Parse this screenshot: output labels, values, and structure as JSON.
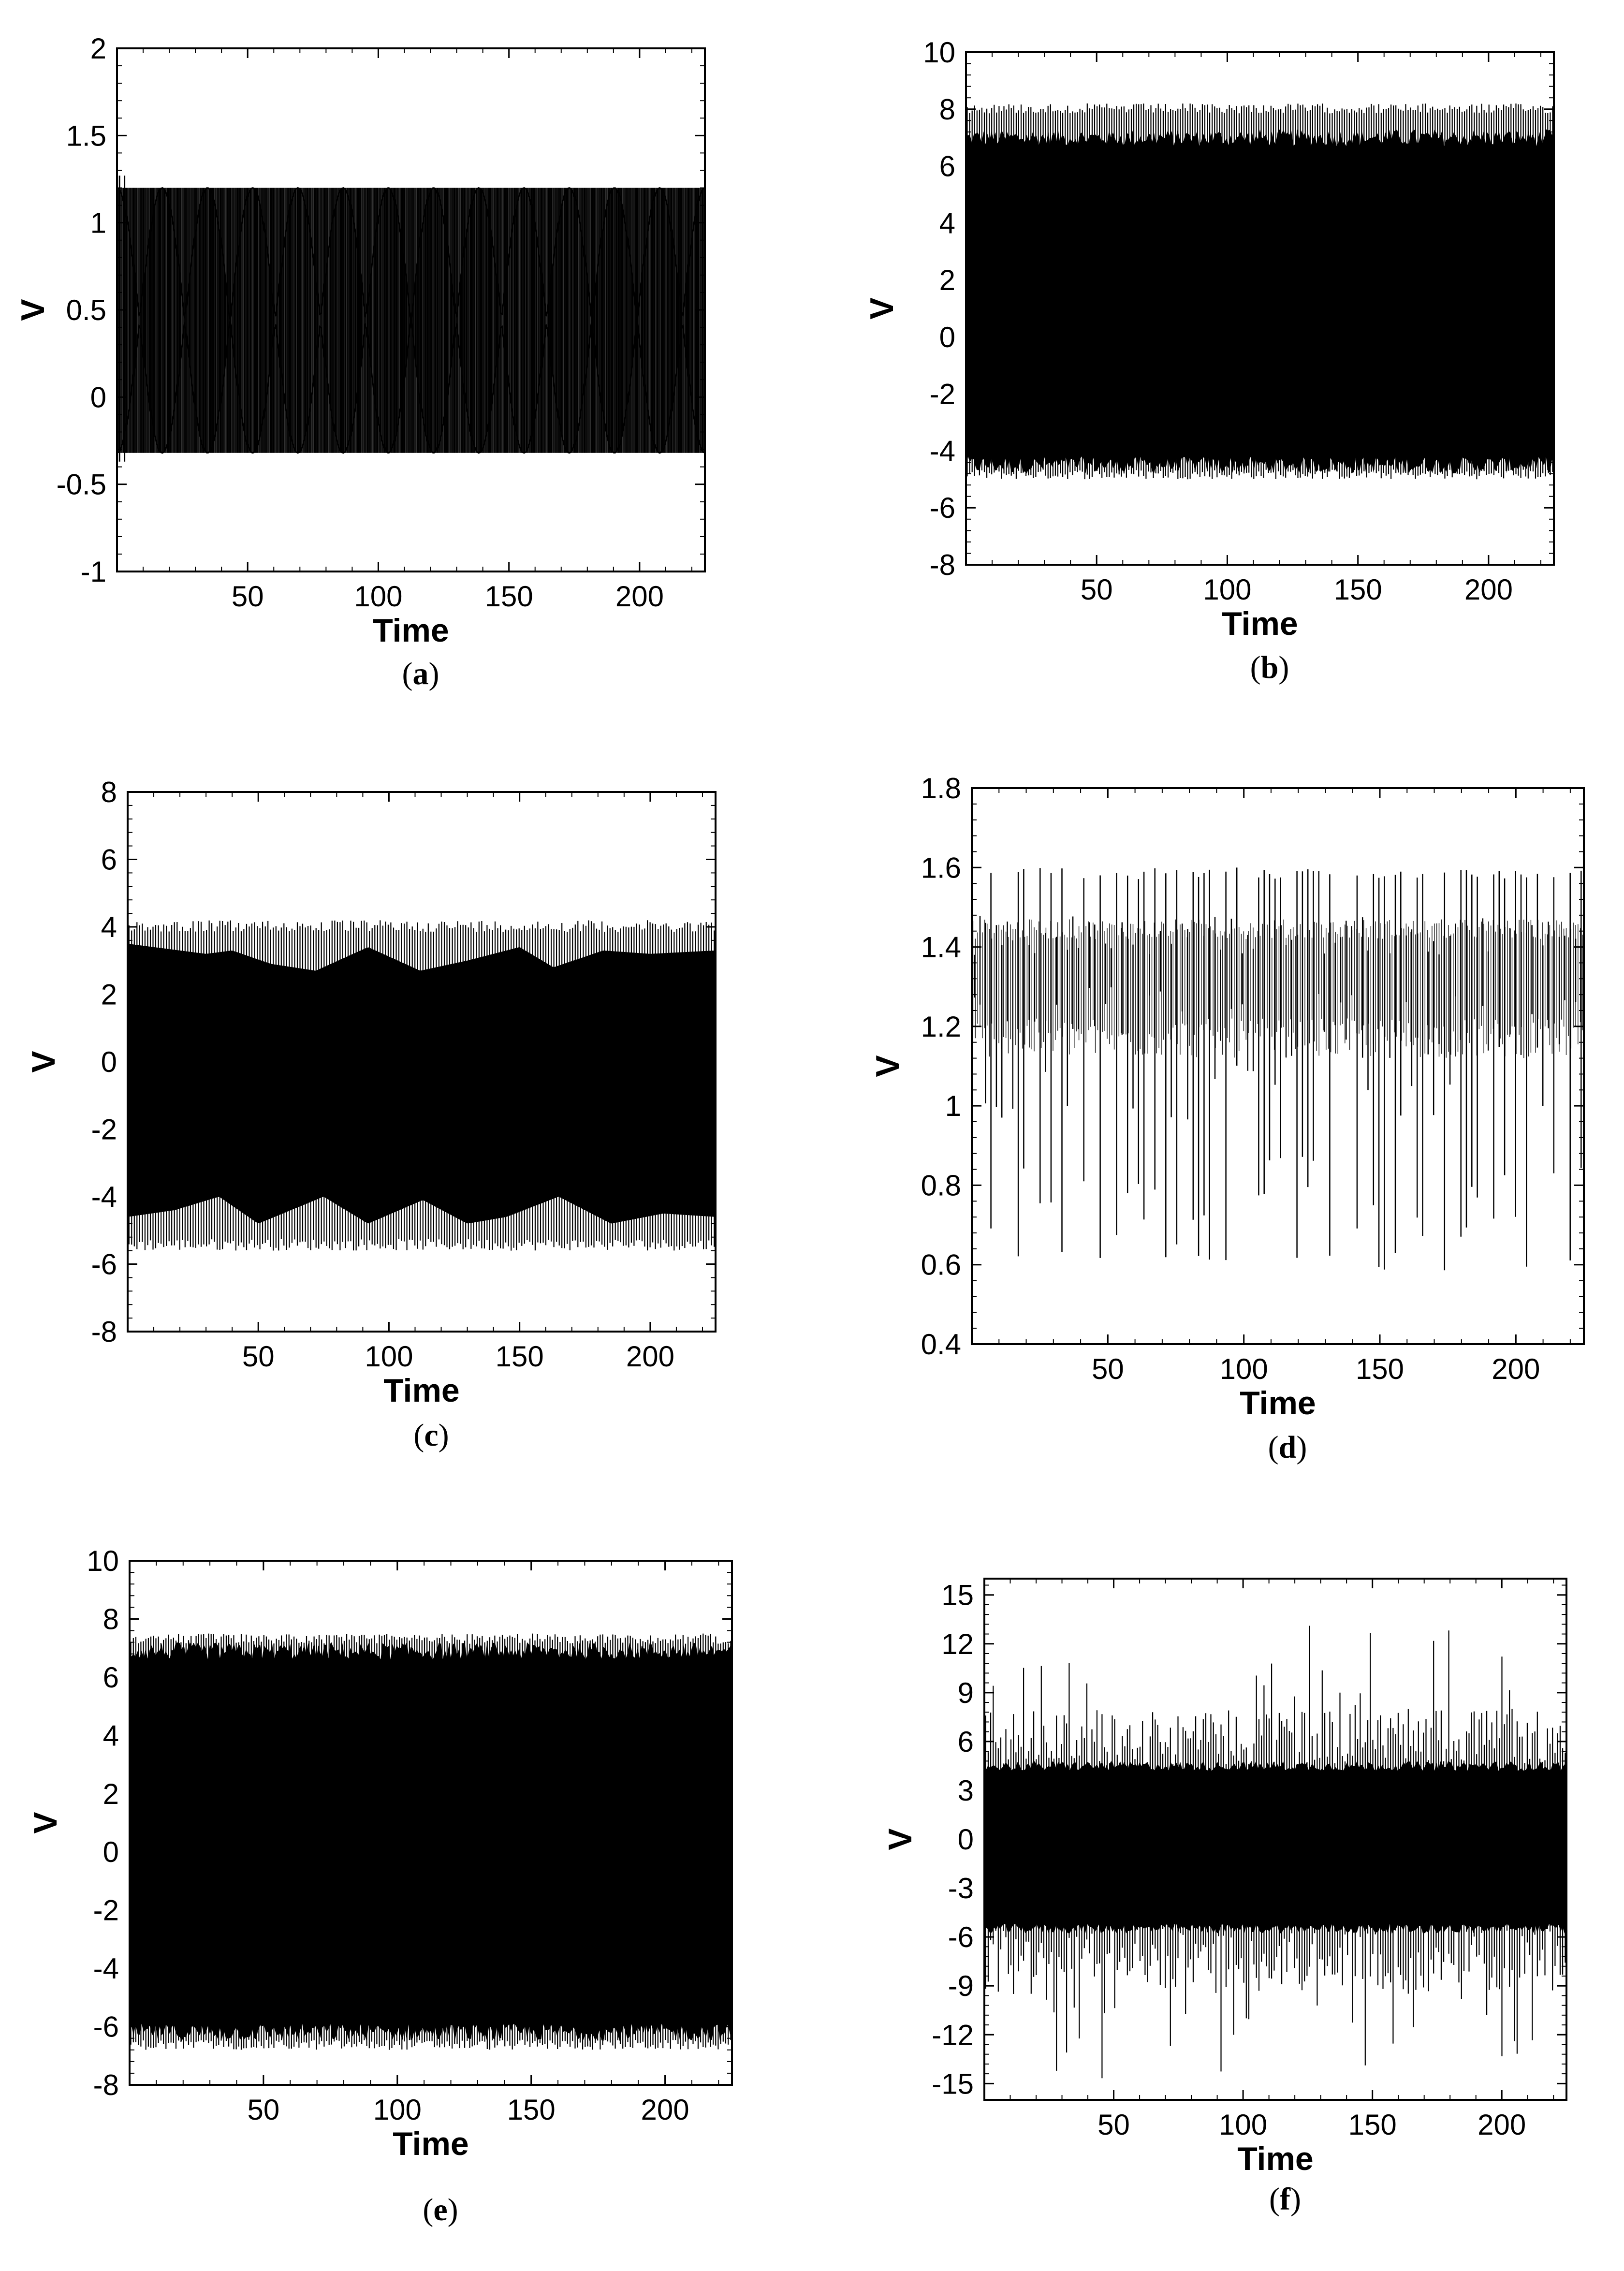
{
  "panels": [
    {
      "caption": "(a)",
      "caption_letter": "a",
      "xlabel": "Time",
      "ylabel": "V",
      "chart_data": {
        "type": "line",
        "title": "",
        "xlabel": "Time",
        "ylabel": "V",
        "xlim": [
          0,
          225
        ],
        "ylim": [
          -1,
          2
        ],
        "x_ticks": [
          50,
          100,
          150,
          200
        ],
        "x_tick_labels": [
          "50",
          "100",
          "150",
          "200"
        ],
        "y_ticks": [
          -1,
          -0.5,
          0,
          0.5,
          1,
          1.5,
          2
        ],
        "y_tick_labels": [
          "-1",
          "-0.5",
          "0",
          "0.5",
          "1",
          "1.5",
          "2"
        ],
        "grid": false,
        "signal": {
          "style": "beating",
          "upper_envelope": 1.2,
          "lower_envelope": -0.32,
          "transient_max": 1.27,
          "transient_min": -0.37,
          "center": 0.44,
          "beat_count": 13,
          "lines_per_beat": 9
        }
      }
    },
    {
      "caption": "(b)",
      "caption_letter": "b",
      "xlabel": "Time",
      "ylabel": "V",
      "chart_data": {
        "type": "line",
        "title": "",
        "xlabel": "Time",
        "ylabel": "V",
        "xlim": [
          0,
          225
        ],
        "ylim": [
          -8,
          10
        ],
        "x_ticks": [
          50,
          100,
          150,
          200
        ],
        "x_tick_labels": [
          "50",
          "100",
          "150",
          "200"
        ],
        "y_ticks": [
          -8,
          -6,
          -4,
          -2,
          0,
          2,
          4,
          6,
          8,
          10
        ],
        "y_tick_labels": [
          "-8",
          "-6",
          "-4",
          "-2",
          "0",
          "2",
          "4",
          "6",
          "8",
          "10"
        ],
        "grid": false,
        "signal": {
          "style": "dense",
          "upper_envelope": 8.2,
          "lower_envelope": -5.0,
          "upper_fill": 7.0,
          "lower_fill": -4.5,
          "spike_count": 240
        }
      }
    },
    {
      "caption": "(c)",
      "caption_letter": "c",
      "xlabel": "Time",
      "ylabel": "V",
      "chart_data": {
        "type": "line",
        "title": "",
        "xlabel": "Time",
        "ylabel": "V",
        "xlim": [
          0,
          225
        ],
        "ylim": [
          -8,
          8
        ],
        "x_ticks": [
          50,
          100,
          150,
          200
        ],
        "x_tick_labels": [
          "50",
          "100",
          "150",
          "200"
        ],
        "y_ticks": [
          -8,
          -6,
          -4,
          -2,
          0,
          2,
          4,
          6,
          8
        ],
        "y_tick_labels": [
          "-8",
          "-6",
          "-4",
          "-2",
          "0",
          "2",
          "4",
          "6",
          "8"
        ],
        "grid": false,
        "signal": {
          "style": "modulated",
          "upper_envelope": 4.2,
          "lower_envelope": -5.6,
          "upper_fill_t": [
            0,
            30,
            40,
            55,
            72,
            92,
            112,
            130,
            150,
            163,
            182,
            200,
            225
          ],
          "upper_fill_v": [
            3.5,
            3.2,
            3.3,
            2.9,
            2.7,
            3.4,
            2.7,
            3.0,
            3.4,
            2.8,
            3.3,
            3.2,
            3.3
          ],
          "lower_fill_t": [
            0,
            18,
            35,
            50,
            75,
            92,
            113,
            130,
            145,
            165,
            185,
            205,
            225
          ],
          "lower_fill_v": [
            -4.6,
            -4.4,
            -4.0,
            -4.8,
            -4.0,
            -4.8,
            -4.1,
            -4.8,
            -4.6,
            -4.0,
            -4.8,
            -4.5,
            -4.6
          ],
          "spike_count": 220
        }
      }
    },
    {
      "caption": "(d)",
      "caption_letter": "d",
      "xlabel": "Time",
      "ylabel": "V",
      "chart_data": {
        "type": "line",
        "title": "",
        "xlabel": "Time",
        "ylabel": "V",
        "xlim": [
          0,
          225
        ],
        "ylim": [
          0.4,
          1.8
        ],
        "x_ticks": [
          50,
          100,
          150,
          200
        ],
        "x_tick_labels": [
          "50",
          "100",
          "150",
          "200"
        ],
        "y_ticks": [
          0.4,
          0.6,
          0.8,
          1,
          1.2,
          1.4,
          1.6,
          1.8
        ],
        "y_tick_labels": [
          "0.4",
          "0.6",
          "0.8",
          "1",
          "1.2",
          "1.4",
          "1.6",
          "1.8"
        ],
        "grid": false,
        "signal": {
          "style": "sparse",
          "max_peak": 1.6,
          "min_trough": 0.58,
          "cycle_count": 112
        }
      }
    },
    {
      "caption": "(e)",
      "caption_letter": "e",
      "xlabel": "Time",
      "ylabel": "V",
      "chart_data": {
        "type": "line",
        "title": "",
        "xlabel": "Time",
        "ylabel": "V",
        "xlim": [
          0,
          225
        ],
        "ylim": [
          -8,
          10
        ],
        "x_ticks": [
          50,
          100,
          150,
          200
        ],
        "x_tick_labels": [
          "50",
          "100",
          "150",
          "200"
        ],
        "y_ticks": [
          -8,
          -6,
          -4,
          -2,
          0,
          2,
          4,
          6,
          8,
          10
        ],
        "y_tick_labels": [
          "-8",
          "-6",
          "-4",
          "-2",
          "0",
          "2",
          "4",
          "6",
          "8",
          "10"
        ],
        "grid": false,
        "signal": {
          "style": "dense",
          "upper_envelope": 7.5,
          "lower_envelope": -6.8,
          "upper_fill": 6.9,
          "lower_fill": -6.2,
          "spike_count": 240
        }
      }
    },
    {
      "caption": "(f)",
      "caption_letter": "f",
      "xlabel": "Time",
      "ylabel": "V",
      "chart_data": {
        "type": "line",
        "title": "",
        "xlabel": "Time",
        "ylabel": "V",
        "xlim": [
          0,
          225
        ],
        "ylim": [
          -16,
          16
        ],
        "x_ticks": [
          50,
          100,
          150,
          200
        ],
        "x_tick_labels": [
          "50",
          "100",
          "150",
          "200"
        ],
        "y_ticks": [
          -15,
          -12,
          -9,
          -6,
          -3,
          0,
          3,
          6,
          9,
          12,
          15
        ],
        "y_tick_labels": [
          "-15",
          "-12",
          "-9",
          "-6",
          "-3",
          "0",
          "3",
          "6",
          "9",
          "12",
          "15"
        ],
        "grid": false,
        "signal": {
          "style": "chaotic",
          "upper_fill": 4.5,
          "lower_fill": -5.5,
          "max_peak": 13.2,
          "min_trough": -14.8,
          "spike_count": 230
        }
      }
    }
  ]
}
